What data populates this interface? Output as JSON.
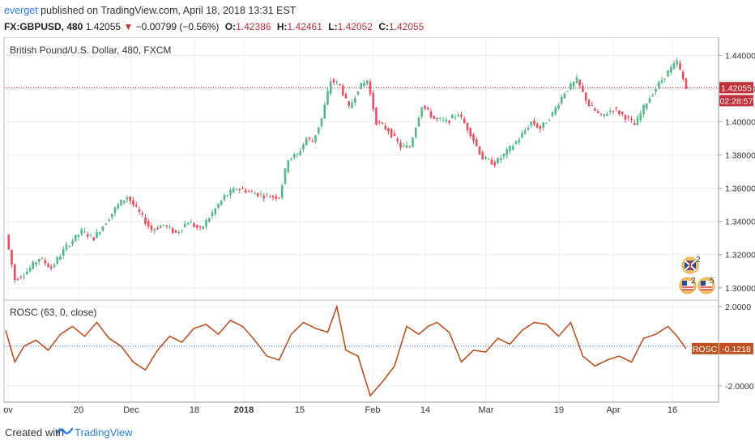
{
  "header": {
    "username": "everget",
    "published_text": " published on TradingView.com, April 18, 2018 13:31 EST",
    "symbol": "FX:GBPUSD, 480",
    "last": "1.42055",
    "change_arrow": "▼",
    "change": "−0.00799 (−0.56%)",
    "open_label": "O:",
    "open": "1.42386",
    "high_label": "H:",
    "high": "1.42461",
    "low_label": "L:",
    "low": "1.42052",
    "close_label": "C:",
    "close": "1.42055"
  },
  "main_pane": {
    "title": "British Pound/U.S. Dollar, 480, FXCM",
    "price_tag": "1.42055",
    "countdown_tag": "02:28:57",
    "price_axis": [
      "1.44000",
      "1.42000",
      "1.40000",
      "1.38000",
      "1.36000",
      "1.34000",
      "1.32000",
      "1.30000"
    ],
    "event_badges": [
      {
        "icon": "uk-flag-icon",
        "count": "2"
      },
      {
        "icon": "us-flag-icon",
        "count": "2"
      },
      {
        "icon": "us-flag-icon",
        "count": "5"
      }
    ]
  },
  "indicator_pane": {
    "title": "ROSC (63, 0, close)",
    "tag_label": "ROSC",
    "tag_value": "-0.1218",
    "axis": [
      "2.0000",
      "-2.0000"
    ]
  },
  "time_axis": [
    {
      "label": "ov",
      "bold": false
    },
    {
      "label": "20",
      "bold": false
    },
    {
      "label": "Dec",
      "bold": false
    },
    {
      "label": "18",
      "bold": false
    },
    {
      "label": "2018",
      "bold": true
    },
    {
      "label": "15",
      "bold": false
    },
    {
      "label": "Feb",
      "bold": false
    },
    {
      "label": "14",
      "bold": false
    },
    {
      "label": "Mar",
      "bold": false
    },
    {
      "label": "19",
      "bold": false
    },
    {
      "label": "Apr",
      "bold": false
    },
    {
      "label": "16",
      "bold": false
    }
  ],
  "footer": {
    "created_with": "Created with",
    "brand": "TradingView"
  },
  "chart_data": [
    {
      "type": "candlestick",
      "title": "British Pound/U.S. Dollar, 480, FXCM",
      "ylim": [
        1.296,
        1.448
      ],
      "close_path": [
        [
          0,
          1.332
        ],
        [
          3,
          1.305
        ],
        [
          7,
          1.31
        ],
        [
          11,
          1.318
        ],
        [
          15,
          1.312
        ],
        [
          20,
          1.325
        ],
        [
          25,
          1.334
        ],
        [
          29,
          1.33
        ],
        [
          33,
          1.34
        ],
        [
          37,
          1.35
        ],
        [
          40,
          1.355
        ],
        [
          44,
          1.345
        ],
        [
          48,
          1.335
        ],
        [
          52,
          1.338
        ],
        [
          56,
          1.333
        ],
        [
          60,
          1.34
        ],
        [
          64,
          1.335
        ],
        [
          68,
          1.345
        ],
        [
          72,
          1.355
        ],
        [
          76,
          1.36
        ],
        [
          80,
          1.358
        ],
        [
          84,
          1.356
        ],
        [
          88,
          1.355
        ],
        [
          90,
          1.355
        ],
        [
          93,
          1.378
        ],
        [
          96,
          1.38
        ],
        [
          99,
          1.39
        ],
        [
          101,
          1.388
        ],
        [
          104,
          1.402
        ],
        [
          107,
          1.425
        ],
        [
          110,
          1.422
        ],
        [
          113,
          1.408
        ],
        [
          116,
          1.42
        ],
        [
          119,
          1.425
        ],
        [
          122,
          1.4
        ],
        [
          126,
          1.395
        ],
        [
          130,
          1.385
        ],
        [
          133,
          1.385
        ],
        [
          137,
          1.41
        ],
        [
          141,
          1.402
        ],
        [
          145,
          1.4
        ],
        [
          149,
          1.405
        ],
        [
          153,
          1.393
        ],
        [
          157,
          1.378
        ],
        [
          161,
          1.375
        ],
        [
          165,
          1.382
        ],
        [
          169,
          1.39
        ],
        [
          173,
          1.4
        ],
        [
          176,
          1.396
        ],
        [
          180,
          1.405
        ],
        [
          184,
          1.418
        ],
        [
          188,
          1.425
        ],
        [
          192,
          1.41
        ],
        [
          196,
          1.403
        ],
        [
          200,
          1.408
        ],
        [
          204,
          1.403
        ],
        [
          207,
          1.398
        ],
        [
          211,
          1.412
        ],
        [
          215,
          1.423
        ],
        [
          218,
          1.43
        ],
        [
          221,
          1.436
        ],
        [
          224,
          1.42
        ]
      ]
    },
    {
      "type": "line",
      "title": "ROSC (63, 0, close)",
      "ylim": [
        -2.7,
        2.2
      ],
      "x": [
        0,
        3,
        6,
        10,
        14,
        18,
        22,
        26,
        30,
        34,
        38,
        42,
        46,
        50,
        54,
        58,
        62,
        66,
        70,
        74,
        78,
        82,
        86,
        90,
        94,
        98,
        102,
        106,
        109,
        112,
        116,
        120,
        124,
        128,
        132,
        136,
        139,
        142,
        146,
        150,
        154,
        158,
        162,
        166,
        170,
        174,
        178,
        182,
        186,
        190,
        194,
        198,
        202,
        206,
        210,
        214,
        218,
        221,
        224
      ],
      "y": [
        0.8,
        -0.8,
        0.0,
        0.3,
        -0.2,
        0.6,
        1.0,
        0.5,
        1.2,
        0.4,
        0.0,
        -0.8,
        -1.2,
        -0.2,
        0.5,
        0.2,
        0.9,
        1.1,
        0.6,
        1.3,
        1.0,
        0.3,
        -0.5,
        -0.7,
        0.6,
        1.2,
        0.9,
        0.7,
        2.0,
        -0.2,
        -0.5,
        -2.5,
        -1.8,
        -1.0,
        1.0,
        0.6,
        1.0,
        1.2,
        0.7,
        -0.8,
        -0.2,
        -0.3,
        0.4,
        0.1,
        0.8,
        1.2,
        1.1,
        0.5,
        1.2,
        -0.5,
        -1.0,
        -0.7,
        -0.5,
        -0.8,
        0.4,
        0.6,
        1.0,
        0.5,
        -0.1218
      ]
    }
  ]
}
